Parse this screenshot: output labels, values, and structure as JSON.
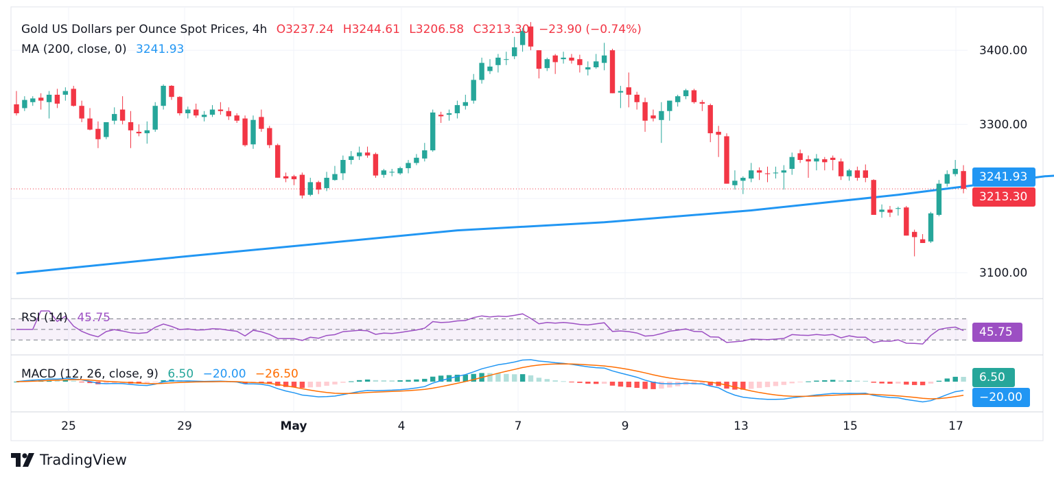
{
  "header": {
    "title": "Gold US Dollars per Ounce Spot Prices, 4h",
    "open": "O3237.24",
    "high": "H3244.61",
    "low": "L3206.58",
    "close": "C3213.30",
    "change": "−23.90 (−0.74%)",
    "ma_label": "MA (200, close, 0)",
    "ma_value": "3241.93"
  },
  "rsi_legend": {
    "label": "RSI (14)",
    "value": "45.75"
  },
  "macd_legend": {
    "label": "MACD (12, 26, close, 9)",
    "hist": "6.50",
    "macd": "−20.00",
    "signal": "−26.50"
  },
  "price_tags": {
    "ma": "3241.93",
    "close": "3213.30",
    "rsi": "45.75",
    "macd_hist": "6.50",
    "macd_line": "−20.00"
  },
  "branding": {
    "logo_text": "TradingView"
  },
  "colors": {
    "up": "#26a69a",
    "down": "#f23645",
    "ma": "#2196f3",
    "rsi": "#9c4fc3",
    "macd": "#2196f3",
    "signal": "#ff6d00",
    "hist_up_strong": "#26a69a",
    "hist_up_weak": "#b2dfdb",
    "hist_down_strong": "#ff5252",
    "hist_down_weak": "#ffcdd2",
    "text": "#131722"
  },
  "chart_data": {
    "type": "candlestick",
    "title": "Gold US Dollars per Ounce Spot Prices, 4h",
    "timeframe": "4h",
    "x_tick_labels": [
      "25",
      "29",
      "May",
      "4",
      "7",
      "9",
      "13",
      "15",
      "17"
    ],
    "y_tick_labels": [
      "3400.00",
      "3300.00",
      "3200.00",
      "3100.00"
    ],
    "ylim": [
      3065,
      3440
    ],
    "last_ohlc": {
      "open": 3237.24,
      "high": 3244.61,
      "low": 3206.58,
      "close": 3213.3,
      "change": -23.9,
      "change_pct": -0.74
    },
    "candles": [
      [
        3327,
        3345,
        3312,
        3315
      ],
      [
        3322,
        3338,
        3318,
        3333
      ],
      [
        3330,
        3338,
        3325,
        3335
      ],
      [
        3336,
        3342,
        3320,
        3332
      ],
      [
        3330,
        3345,
        3308,
        3340
      ],
      [
        3340,
        3348,
        3322,
        3328
      ],
      [
        3340,
        3350,
        3332,
        3345
      ],
      [
        3348,
        3352,
        3324,
        3325
      ],
      [
        3325,
        3332,
        3303,
        3308
      ],
      [
        3308,
        3322,
        3292,
        3293
      ],
      [
        3294,
        3304,
        3268,
        3280
      ],
      [
        3283,
        3302,
        3280,
        3303
      ],
      [
        3305,
        3323,
        3300,
        3314
      ],
      [
        3320,
        3338,
        3300,
        3305
      ],
      [
        3303,
        3318,
        3268,
        3292
      ],
      [
        3290,
        3300,
        3284,
        3288
      ],
      [
        3288,
        3304,
        3274,
        3292
      ],
      [
        3293,
        3330,
        3290,
        3325
      ],
      [
        3325,
        3354,
        3320,
        3352
      ],
      [
        3352,
        3353,
        3333,
        3337
      ],
      [
        3337,
        3338,
        3312,
        3315
      ],
      [
        3315,
        3324,
        3308,
        3320
      ],
      [
        3320,
        3328,
        3309,
        3312
      ],
      [
        3310,
        3318,
        3304,
        3313
      ],
      [
        3313,
        3326,
        3310,
        3320
      ],
      [
        3320,
        3330,
        3313,
        3318
      ],
      [
        3318,
        3323,
        3306,
        3311
      ],
      [
        3312,
        3315,
        3302,
        3305
      ],
      [
        3308,
        3312,
        3270,
        3272
      ],
      [
        3273,
        3312,
        3267,
        3306
      ],
      [
        3310,
        3320,
        3290,
        3294
      ],
      [
        3295,
        3298,
        3268,
        3272
      ],
      [
        3272,
        3274,
        3228,
        3228
      ],
      [
        3230,
        3235,
        3222,
        3227
      ],
      [
        3230,
        3232,
        3218,
        3226
      ],
      [
        3232,
        3235,
        3200,
        3204
      ],
      [
        3205,
        3228,
        3203,
        3222
      ],
      [
        3222,
        3224,
        3206,
        3212
      ],
      [
        3214,
        3236,
        3210,
        3228
      ],
      [
        3225,
        3244,
        3224,
        3233
      ],
      [
        3234,
        3258,
        3225,
        3252
      ],
      [
        3252,
        3264,
        3246,
        3257
      ],
      [
        3257,
        3270,
        3252,
        3262
      ],
      [
        3262,
        3270,
        3255,
        3258
      ],
      [
        3260,
        3262,
        3228,
        3231
      ],
      [
        3232,
        3240,
        3228,
        3238
      ],
      [
        3235,
        3240,
        3230,
        3236
      ],
      [
        3234,
        3243,
        3232,
        3241
      ],
      [
        3241,
        3252,
        3234,
        3248
      ],
      [
        3248,
        3260,
        3245,
        3255
      ],
      [
        3254,
        3275,
        3250,
        3265
      ],
      [
        3265,
        3320,
        3263,
        3316
      ],
      [
        3313,
        3317,
        3302,
        3311
      ],
      [
        3313,
        3320,
        3305,
        3315
      ],
      [
        3315,
        3332,
        3308,
        3326
      ],
      [
        3325,
        3340,
        3320,
        3330
      ],
      [
        3332,
        3368,
        3328,
        3360
      ],
      [
        3360,
        3390,
        3355,
        3383
      ],
      [
        3372,
        3388,
        3368,
        3378
      ],
      [
        3380,
        3395,
        3370,
        3390
      ],
      [
        3388,
        3398,
        3380,
        3388
      ],
      [
        3392,
        3418,
        3388,
        3404
      ],
      [
        3407,
        3430,
        3398,
        3426
      ],
      [
        3432,
        3438,
        3400,
        3405
      ],
      [
        3400,
        3400,
        3362,
        3375
      ],
      [
        3376,
        3390,
        3372,
        3388
      ],
      [
        3393,
        3395,
        3368,
        3384
      ],
      [
        3388,
        3398,
        3382,
        3390
      ],
      [
        3390,
        3395,
        3382,
        3386
      ],
      [
        3388,
        3394,
        3370,
        3380
      ],
      [
        3374,
        3385,
        3366,
        3377
      ],
      [
        3377,
        3395,
        3375,
        3385
      ],
      [
        3383,
        3410,
        3373,
        3393
      ],
      [
        3400,
        3402,
        3342,
        3342
      ],
      [
        3343,
        3352,
        3322,
        3345
      ],
      [
        3350,
        3370,
        3323,
        3340
      ],
      [
        3340,
        3344,
        3320,
        3330
      ],
      [
        3330,
        3336,
        3290,
        3305
      ],
      [
        3312,
        3320,
        3304,
        3308
      ],
      [
        3306,
        3330,
        3275,
        3318
      ],
      [
        3318,
        3332,
        3305,
        3332
      ],
      [
        3330,
        3340,
        3324,
        3338
      ],
      [
        3338,
        3348,
        3334,
        3346
      ],
      [
        3346,
        3348,
        3328,
        3330
      ],
      [
        3330,
        3333,
        3318,
        3328
      ],
      [
        3326,
        3328,
        3276,
        3288
      ],
      [
        3290,
        3298,
        3256,
        3286
      ],
      [
        3284,
        3288,
        3220,
        3220
      ],
      [
        3218,
        3238,
        3212,
        3224
      ],
      [
        3224,
        3230,
        3206,
        3228
      ],
      [
        3227,
        3248,
        3222,
        3238
      ],
      [
        3238,
        3242,
        3225,
        3235
      ],
      [
        3234,
        3243,
        3222,
        3233
      ],
      [
        3234,
        3243,
        3227,
        3235
      ],
      [
        3235,
        3245,
        3212,
        3238
      ],
      [
        3240,
        3262,
        3232,
        3256
      ],
      [
        3261,
        3266,
        3248,
        3252
      ],
      [
        3253,
        3258,
        3228,
        3250
      ],
      [
        3250,
        3260,
        3238,
        3254
      ],
      [
        3253,
        3256,
        3238,
        3249
      ],
      [
        3255,
        3258,
        3238,
        3252
      ],
      [
        3250,
        3254,
        3225,
        3230
      ],
      [
        3230,
        3240,
        3224,
        3238
      ],
      [
        3238,
        3243,
        3224,
        3228
      ],
      [
        3238,
        3246,
        3222,
        3228
      ],
      [
        3225,
        3226,
        3178,
        3178
      ],
      [
        3182,
        3192,
        3174,
        3185
      ],
      [
        3185,
        3190,
        3175,
        3181
      ],
      [
        3186,
        3189,
        3177,
        3187
      ],
      [
        3188,
        3190,
        3150,
        3150
      ],
      [
        3155,
        3158,
        3122,
        3148
      ],
      [
        3145,
        3152,
        3140,
        3140
      ],
      [
        3142,
        3182,
        3140,
        3180
      ],
      [
        3178,
        3225,
        3176,
        3220
      ],
      [
        3220,
        3238,
        3216,
        3233
      ],
      [
        3233,
        3252,
        3230,
        3240
      ],
      [
        3237,
        3245,
        3207,
        3213
      ]
    ],
    "ma200": {
      "label": "MA (200, close, 0)",
      "last": 3241.93,
      "points": [
        [
          0,
          3099
        ],
        [
          18,
          3119
        ],
        [
          36,
          3138
        ],
        [
          54,
          3157
        ],
        [
          72,
          3168
        ],
        [
          90,
          3184
        ],
        [
          108,
          3205
        ],
        [
          126,
          3230
        ],
        [
          144,
          3242
        ]
      ]
    },
    "rsi": {
      "label": "RSI (14)",
      "last": 45.75,
      "levels": [
        70,
        50,
        30
      ],
      "ylim": [
        20,
        85
      ]
    },
    "macd": {
      "label": "MACD (12, 26, close, 9)",
      "hist": 6.5,
      "macd": -20.0,
      "signal": -26.5
    }
  }
}
